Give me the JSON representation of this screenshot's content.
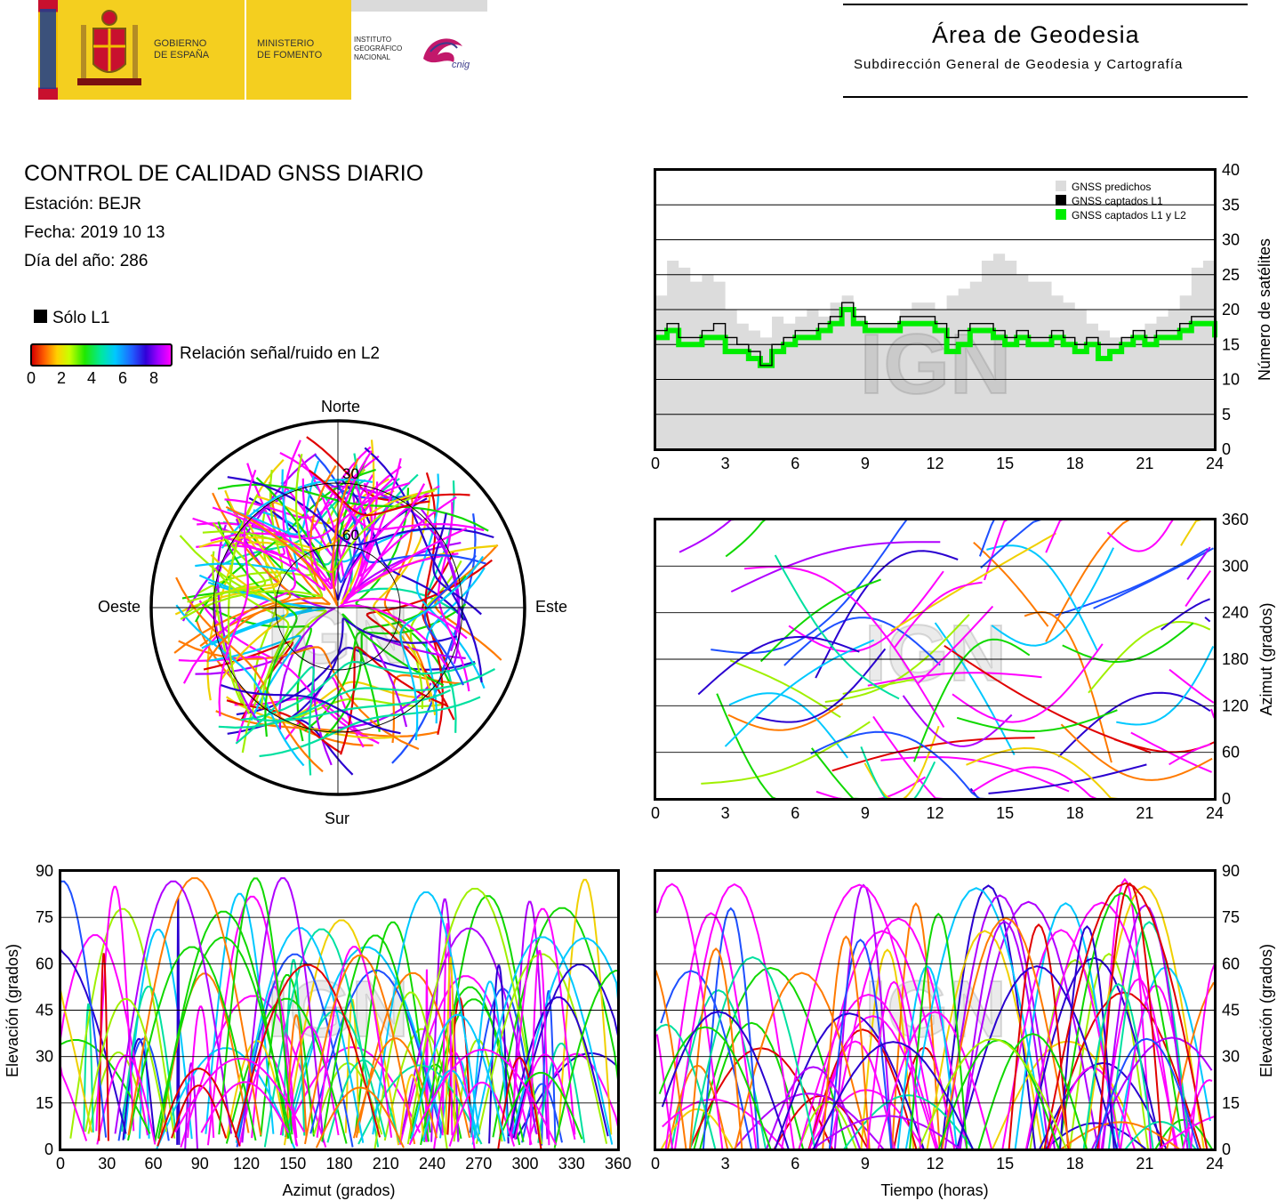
{
  "header": {
    "gov": [
      "GOBIERNO",
      "DE ESPAÑA"
    ],
    "ministry": [
      "MINISTERIO",
      "DE FOMENTO"
    ],
    "institute": [
      "INSTITUTO",
      "GEOGRÁFICO",
      "NACIONAL"
    ],
    "cnig": "cnig",
    "area_title": "Área de Geodesia",
    "area_subtitle": "Subdirección General de Geodesia y Cartografía",
    "colors": {
      "flag_red": "#c8102e",
      "flag_yellow": "#f1bf00",
      "eu_blue": "#1b3d91",
      "brand_yellow": "#f4cf1f",
      "cnig_magenta": "#c2186b"
    }
  },
  "report": {
    "title": "CONTROL DE CALIDAD GNSS DIARIO",
    "station": "Estación: BEJR",
    "date": "Fecha: 2019 10 13",
    "doy": "Día del año: 286"
  },
  "legend": {
    "l1_only": "Sólo L1",
    "snr": "Relación señal/ruido en L2",
    "ticks": [
      "0",
      "2",
      "4",
      "6",
      "8"
    ]
  },
  "watermark": "IGN",
  "chart_data": [
    {
      "id": "satellite-count",
      "type": "line",
      "xlim": [
        0,
        24
      ],
      "ylim": [
        0,
        40
      ],
      "xticks": [
        "0",
        "3",
        "6",
        "9",
        "12",
        "15",
        "18",
        "21",
        "24"
      ],
      "yticks": [
        "0",
        "5",
        "10",
        "15",
        "20",
        "25",
        "30",
        "35",
        "40"
      ],
      "ylabel": "Número de satélites",
      "legend_position": "top-right",
      "series": [
        {
          "name": "GNSS predichos",
          "color": "#dcdcdc",
          "x": [
            0,
            0.5,
            1,
            1.5,
            2,
            2.5,
            3,
            3.5,
            4,
            4.5,
            5,
            5.5,
            6,
            6.5,
            7,
            7.5,
            8,
            8.5,
            9,
            9.5,
            10,
            10.5,
            11,
            11.5,
            12,
            12.5,
            13,
            13.5,
            14,
            14.5,
            15,
            15.5,
            16,
            16.5,
            17,
            17.5,
            18,
            18.5,
            19,
            19.5,
            20,
            20.5,
            21,
            21.5,
            22,
            22.5,
            23,
            23.5,
            24
          ],
          "values": [
            22,
            27,
            26,
            24,
            25,
            24,
            20,
            18,
            17,
            16,
            19,
            18,
            19,
            20,
            19,
            21,
            22,
            19,
            18,
            18,
            18,
            20,
            21,
            21,
            20,
            22,
            23,
            24,
            27,
            28,
            27,
            25,
            24,
            24,
            22,
            21,
            20,
            18,
            17,
            16,
            16,
            17,
            18,
            19,
            20,
            22,
            26,
            27,
            24
          ]
        },
        {
          "name": "GNSS captados L1",
          "color": "#000000",
          "x": [
            0,
            0.5,
            1,
            1.5,
            2,
            2.5,
            3,
            3.5,
            4,
            4.5,
            5,
            5.5,
            6,
            6.5,
            7,
            7.5,
            8,
            8.5,
            9,
            9.5,
            10,
            10.5,
            11,
            11.5,
            12,
            12.5,
            13,
            13.5,
            14,
            14.5,
            15,
            15.5,
            16,
            16.5,
            17,
            17.5,
            18,
            18.5,
            19,
            19.5,
            20,
            20.5,
            21,
            21.5,
            22,
            22.5,
            23,
            23.5,
            24
          ],
          "values": [
            17,
            18,
            16,
            16,
            17,
            18,
            16,
            15,
            14,
            12,
            15,
            16,
            17,
            17,
            18,
            19,
            21,
            19,
            18,
            18,
            18,
            19,
            19,
            19,
            18,
            16,
            17,
            18,
            18,
            17,
            16,
            17,
            16,
            16,
            17,
            16,
            15,
            16,
            15,
            15,
            16,
            17,
            16,
            17,
            17,
            18,
            19,
            19,
            17
          ]
        },
        {
          "name": "GNSS captados L1 y L2",
          "color": "#00ee00",
          "x": [
            0,
            0.5,
            1,
            1.5,
            2,
            2.5,
            3,
            3.5,
            4,
            4.5,
            5,
            5.5,
            6,
            6.5,
            7,
            7.5,
            8,
            8.5,
            9,
            9.5,
            10,
            10.5,
            11,
            11.5,
            12,
            12.5,
            13,
            13.5,
            14,
            14.5,
            15,
            15.5,
            16,
            16.5,
            17,
            17.5,
            18,
            18.5,
            19,
            19.5,
            20,
            20.5,
            21,
            21.5,
            22,
            22.5,
            23,
            23.5,
            24
          ],
          "values": [
            16,
            17,
            15,
            15,
            16,
            16,
            14,
            14,
            13,
            12,
            14,
            15,
            16,
            16,
            17,
            18,
            20,
            18,
            17,
            17,
            17,
            18,
            18,
            18,
            17,
            14,
            15,
            17,
            17,
            16,
            15,
            16,
            15,
            15,
            16,
            15,
            14,
            15,
            13,
            14,
            15,
            16,
            15,
            16,
            16,
            17,
            18,
            18,
            16
          ]
        }
      ]
    },
    {
      "id": "sky-plot",
      "type": "scatter",
      "projection": "polar",
      "labels": {
        "north": "Norte",
        "south": "Sur",
        "west": "Oeste",
        "east": "Este"
      },
      "rings": [
        "30",
        "60"
      ]
    },
    {
      "id": "azimuth-time",
      "type": "scatter",
      "xlim": [
        0,
        24
      ],
      "ylim": [
        0,
        360
      ],
      "xticks": [
        "0",
        "3",
        "6",
        "9",
        "12",
        "15",
        "18",
        "21",
        "24"
      ],
      "yticks": [
        "0",
        "60",
        "120",
        "180",
        "240",
        "300",
        "360"
      ],
      "ylabel": "Azimut (grados)"
    },
    {
      "id": "elevation-azimuth",
      "type": "scatter",
      "xlim": [
        0,
        360
      ],
      "ylim": [
        0,
        90
      ],
      "xticks": [
        "0",
        "30",
        "60",
        "90",
        "120",
        "150",
        "180",
        "210",
        "240",
        "270",
        "300",
        "330",
        "360"
      ],
      "yticks": [
        "0",
        "15",
        "30",
        "45",
        "60",
        "75",
        "90"
      ],
      "xlabel": "Azimut (grados)",
      "ylabel": "Elevación (grados)"
    },
    {
      "id": "elevation-time",
      "type": "scatter",
      "xlim": [
        0,
        24
      ],
      "ylim": [
        0,
        90
      ],
      "xticks": [
        "0",
        "3",
        "6",
        "9",
        "12",
        "15",
        "18",
        "21",
        "24"
      ],
      "yticks": [
        "0",
        "15",
        "30",
        "45",
        "60",
        "75",
        "90"
      ],
      "xlabel": "Tiempo (horas)",
      "ylabel": "Elevación (grados)"
    }
  ]
}
